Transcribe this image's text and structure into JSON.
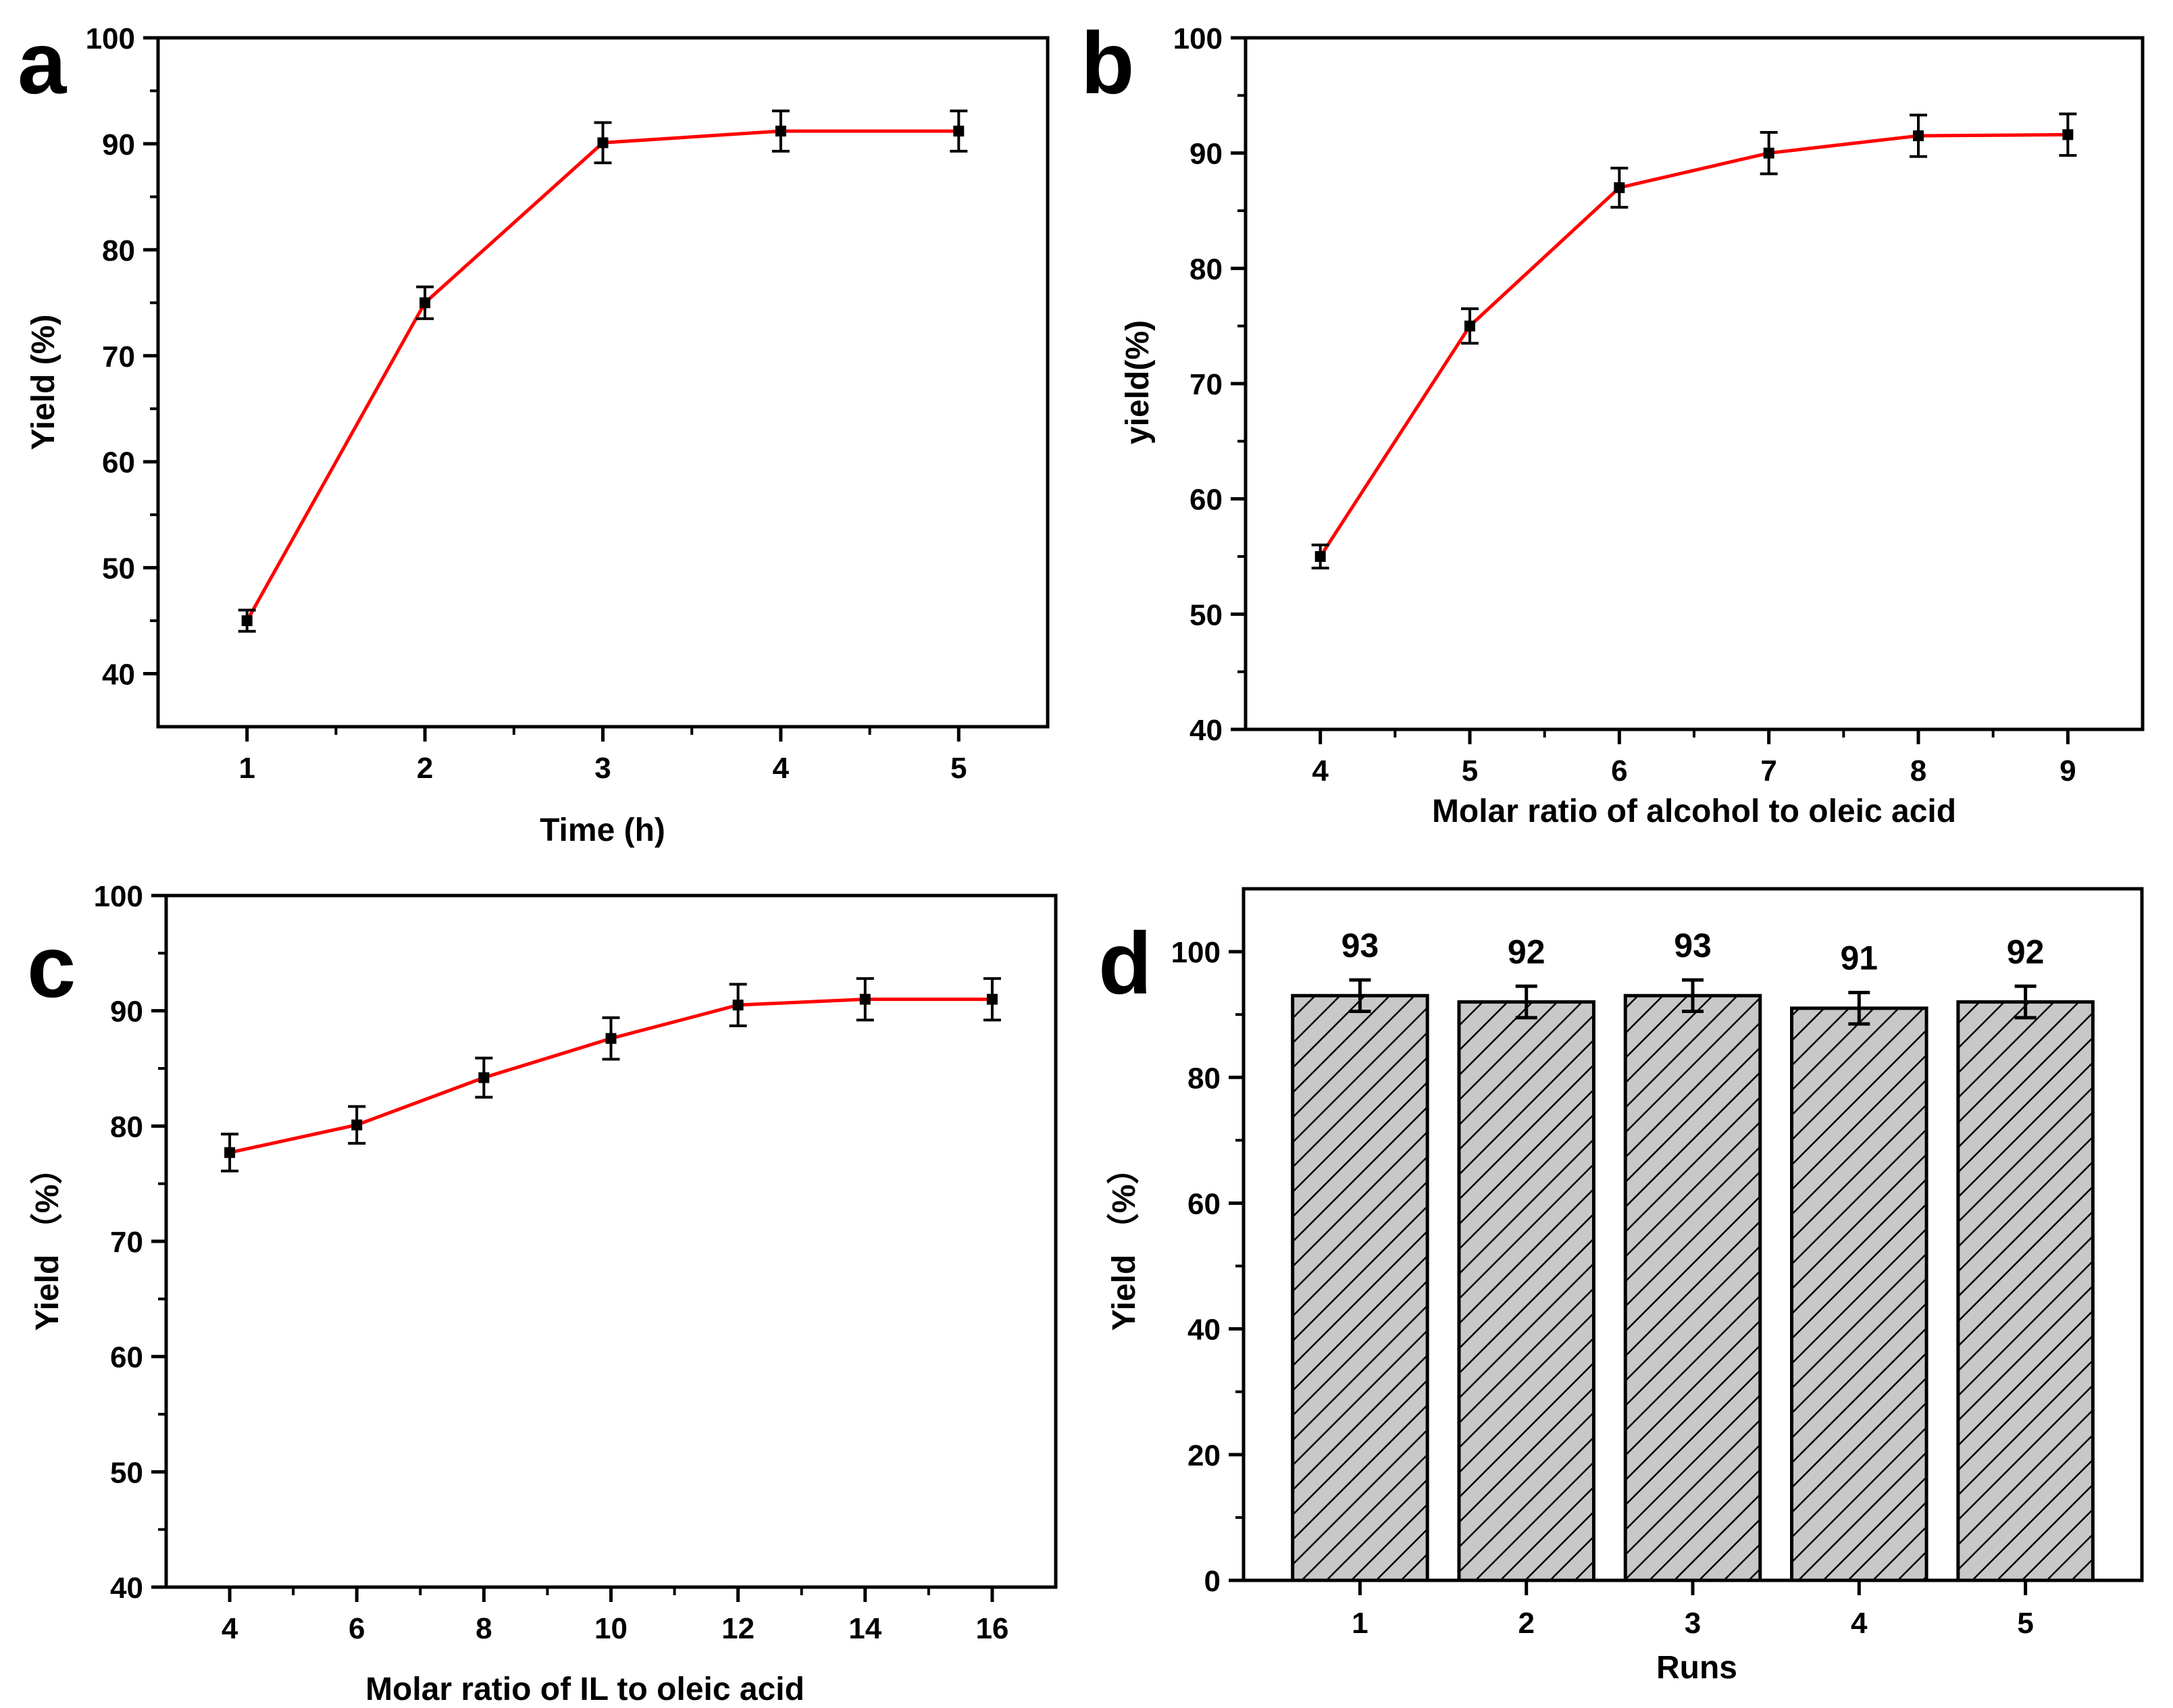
{
  "colors": {
    "line": "#ff0000",
    "marker": "#000000",
    "bar_fill": "#c8c8c8",
    "axis": "#000000"
  },
  "chart_data": [
    {
      "panel": "a",
      "type": "line",
      "xlabel": "Time (h)",
      "ylabel": "Yield (%)",
      "xlim": [
        0.5,
        5.5
      ],
      "ylim": [
        35,
        100
      ],
      "x_ticks": [
        1,
        2,
        3,
        4,
        5
      ],
      "y_ticks": [
        40,
        50,
        60,
        70,
        80,
        90,
        100
      ],
      "grid": false,
      "series": [
        {
          "x": [
            1,
            2,
            3,
            4,
            5
          ],
          "y": [
            45,
            75,
            90.1,
            91.2,
            91.2
          ],
          "error": [
            1.0,
            1.5,
            1.9,
            1.9,
            1.9
          ]
        }
      ]
    },
    {
      "panel": "b",
      "type": "line",
      "xlabel": "Molar ratio of alcohol to oleic acid",
      "ylabel": "yield(%)",
      "xlim": [
        3.5,
        9.5
      ],
      "ylim": [
        40,
        100
      ],
      "x_ticks": [
        4,
        5,
        6,
        7,
        8,
        9
      ],
      "y_ticks": [
        40,
        50,
        60,
        70,
        80,
        90,
        100
      ],
      "grid": false,
      "series": [
        {
          "x": [
            4,
            5,
            6,
            7,
            8,
            9
          ],
          "y": [
            55,
            75,
            87,
            90,
            91.5,
            91.6
          ],
          "error": [
            1.0,
            1.5,
            1.7,
            1.8,
            1.8,
            1.8
          ]
        }
      ]
    },
    {
      "panel": "c",
      "type": "line",
      "xlabel": "Molar ratio of IL to oleic acid",
      "ylabel": "Yield （%）",
      "xlim": [
        3,
        17
      ],
      "ylim": [
        40,
        100
      ],
      "x_ticks": [
        4,
        6,
        8,
        10,
        12,
        14,
        16
      ],
      "y_ticks": [
        40,
        50,
        60,
        70,
        80,
        90,
        100
      ],
      "grid": false,
      "series": [
        {
          "x": [
            4,
            6,
            8,
            10,
            12,
            14,
            16
          ],
          "y": [
            77.7,
            80.1,
            84.2,
            87.6,
            90.5,
            91,
            91
          ],
          "error": [
            1.6,
            1.6,
            1.7,
            1.8,
            1.8,
            1.8,
            1.8
          ]
        }
      ]
    },
    {
      "panel": "d",
      "type": "bar",
      "xlabel": "Runs",
      "ylabel": "Yield （%）",
      "ylim": [
        0,
        110
      ],
      "y_ticks": [
        0,
        20,
        40,
        60,
        80,
        100
      ],
      "grid": false,
      "categories": [
        "1",
        "2",
        "3",
        "4",
        "5"
      ],
      "values": [
        93,
        92,
        93,
        91,
        92
      ],
      "error": [
        2.5,
        2.5,
        2.5,
        2.5,
        2.5
      ],
      "data_labels": [
        "93",
        "92",
        "93",
        "91",
        "92"
      ]
    }
  ]
}
